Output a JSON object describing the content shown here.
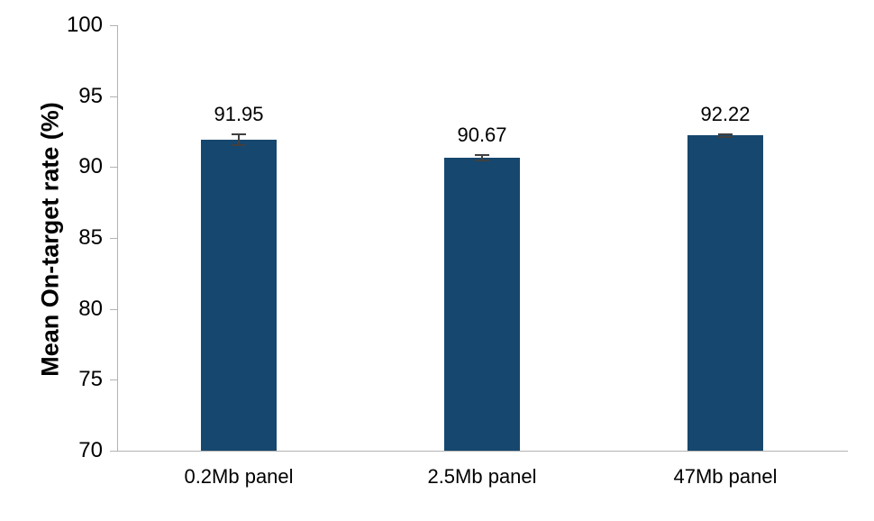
{
  "chart_data": {
    "type": "bar",
    "title": "",
    "categories": [
      "0.2Mb panel",
      "2.5Mb panel",
      "47Mb panel"
    ],
    "values": [
      91.95,
      90.67,
      92.22
    ],
    "value_labels": [
      "91.95",
      "90.67",
      "92.22"
    ],
    "error": [
      0.45,
      0.25,
      0.15
    ],
    "xlabel": "",
    "ylabel": "Mean On-target rate (%)",
    "ylim": [
      70,
      100
    ],
    "yticks": [
      70,
      75,
      80,
      85,
      90,
      95,
      100
    ],
    "grid": false,
    "legend": "none",
    "bar_color": "#16476e",
    "error_bar_color": "#404040",
    "axis_color": "#b3b3b3"
  }
}
